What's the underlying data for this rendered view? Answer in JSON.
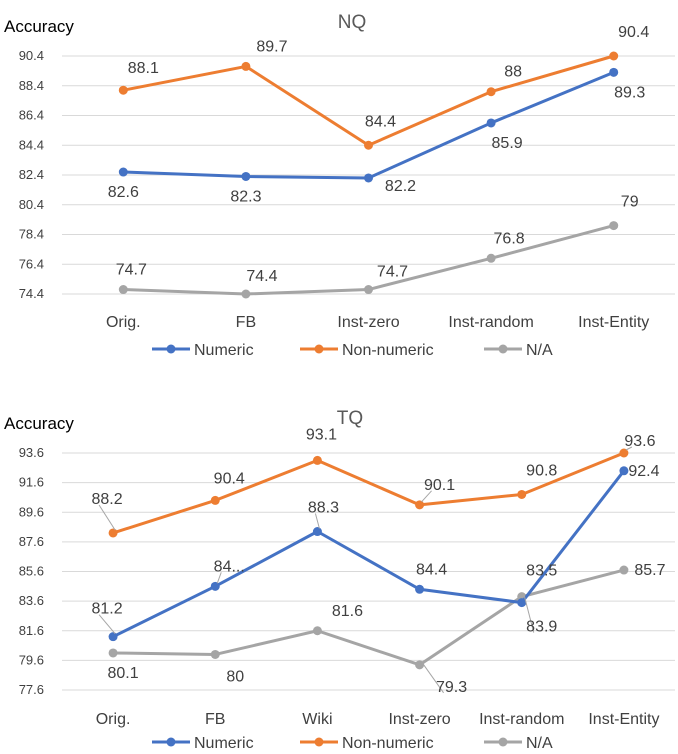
{
  "colors": {
    "Numeric": "#4472c4",
    "Non-numeric": "#ed7d31",
    "N/A": "#a5a5a5"
  },
  "chart_data": [
    {
      "type": "line",
      "title": "NQ",
      "ylabel": "Accuracy",
      "xlabel": "",
      "categories": [
        "Orig.",
        "FB",
        "Inst-zero",
        "Inst-random",
        "Inst-Entity"
      ],
      "yticks": [
        "90.4",
        "88.4",
        "86.4",
        "84.4",
        "82.4",
        "80.4",
        "78.4",
        "76.4",
        "74.4"
      ],
      "ylim": [
        74.4,
        90.4
      ],
      "grid": true,
      "legend_position": "bottom",
      "series": [
        {
          "name": "Numeric",
          "values": [
            82.6,
            82.3,
            82.2,
            85.9,
            89.3
          ],
          "labels": [
            "82.6",
            "82.3",
            "82.2",
            "85.9",
            "89.3"
          ]
        },
        {
          "name": "Non-numeric",
          "values": [
            88.1,
            89.7,
            84.4,
            88.0,
            90.4
          ],
          "labels": [
            "88.1",
            "89.7",
            "84.4",
            "88",
            "90.4"
          ]
        },
        {
          "name": "N/A",
          "values": [
            74.7,
            74.4,
            74.7,
            76.8,
            79.0
          ],
          "labels": [
            "74.7",
            "74.4",
            "74.7",
            "76.8",
            "79"
          ]
        }
      ]
    },
    {
      "type": "line",
      "title": "TQ",
      "ylabel": "Accuracy",
      "xlabel": "",
      "categories": [
        "Orig.",
        "FB",
        "Wiki",
        "Inst-zero",
        "Inst-random",
        "Inst-Entity"
      ],
      "yticks": [
        "93.6",
        "91.6",
        "89.6",
        "87.6",
        "85.6",
        "83.6",
        "81.6",
        "79.6",
        "77.6"
      ],
      "ylim": [
        77.6,
        93.6
      ],
      "grid": true,
      "legend_position": "bottom",
      "series": [
        {
          "name": "Numeric",
          "values": [
            81.2,
            84.6,
            88.3,
            84.4,
            83.5,
            92.4
          ],
          "labels": [
            "81.2",
            "84...",
            "88.3",
            "84.4",
            "83.5",
            "92.4"
          ]
        },
        {
          "name": "Non-numeric",
          "values": [
            88.2,
            90.4,
            93.1,
            90.1,
            90.8,
            93.6
          ],
          "labels": [
            "88.2",
            "90.4",
            "93.1",
            "90.1",
            "90.8",
            "93.6"
          ]
        },
        {
          "name": "N/A",
          "values": [
            80.1,
            80.0,
            81.6,
            79.3,
            83.9,
            85.7
          ],
          "labels": [
            "80.1",
            "80",
            "81.6",
            "79.3",
            "83.9",
            "85.7"
          ]
        }
      ]
    }
  ]
}
